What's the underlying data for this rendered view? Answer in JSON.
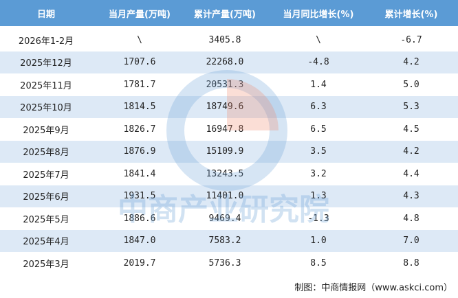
{
  "table": {
    "header": [
      "日期",
      "当月产量(万吨)",
      "累计产量(万吨)",
      "当月同比增长(%)",
      "累计增长(%)"
    ],
    "rows": [
      [
        "2026年1-2月",
        "\\",
        "3405.8",
        "\\",
        "-6.7"
      ],
      [
        "2025年12月",
        "1707.6",
        "22268.0",
        "-4.8",
        "4.2"
      ],
      [
        "2025年11月",
        "1781.7",
        "20531.3",
        "1.4",
        "5.0"
      ],
      [
        "2025年10月",
        "1814.5",
        "18749.6",
        "6.3",
        "5.3"
      ],
      [
        "2025年9月",
        "1826.7",
        "16947.8",
        "6.5",
        "4.5"
      ],
      [
        "2025年8月",
        "1876.9",
        "15109.9",
        "3.5",
        "4.2"
      ],
      [
        "2025年7月",
        "1841.4",
        "13243.5",
        "3.2",
        "4.4"
      ],
      [
        "2025年6月",
        "1931.5",
        "11401.0",
        "1.3",
        "4.3"
      ],
      [
        "2025年5月",
        "1886.6",
        "9469.4",
        "-1.3",
        "4.8"
      ],
      [
        "2025年4月",
        "1847.0",
        "7583.2",
        "1.0",
        "7.0"
      ],
      [
        "2025年3月",
        "2019.7",
        "5736.3",
        "8.5",
        "8.8"
      ]
    ]
  },
  "watermark": "中商产业研究院",
  "footer": "制图：中商情报网（www.askci.com）"
}
